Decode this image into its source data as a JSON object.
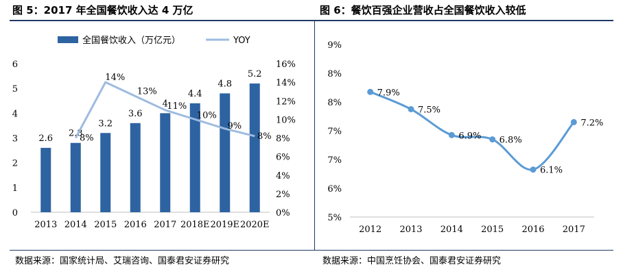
{
  "left": {
    "title": "图 5：2017 年全国餐饮收入达 4 万亿",
    "source": "数据来源：国家统计局、艾瑞咨询、国泰君安证券研究"
  },
  "right": {
    "title": "图 6：餐饮百强企业营收占全国餐饮收入较低",
    "source": "数据来源：中国烹饪协会、国泰君安证券研究"
  },
  "colors": {
    "bar": "#2e63a2",
    "yoy": "#9dbbe0",
    "line": "#5b9bd5",
    "rule": "#1f3864"
  },
  "chart_data": [
    {
      "type": "bar",
      "title": "",
      "categories": [
        "2013",
        "2014",
        "2015",
        "2016",
        "2017",
        "2018E",
        "2019E",
        "2020E"
      ],
      "series": [
        {
          "name": "全国餐饮收入（万亿元）",
          "type": "bar",
          "axis": "left",
          "values": [
            2.6,
            2.8,
            3.2,
            3.6,
            4,
            4.4,
            4.8,
            5.2
          ],
          "labels": [
            "2.6",
            "2.8",
            "3.2",
            "3.6",
            "4",
            "4.4",
            "4.8",
            "5.2"
          ]
        },
        {
          "name": "YOY",
          "type": "line",
          "axis": "right",
          "values": [
            null,
            8,
            14,
            12.5,
            11,
            10,
            9,
            8.2
          ],
          "labels": [
            "",
            "8%",
            "14%",
            "13%",
            "11%",
            "10%",
            "9%",
            "8%"
          ]
        }
      ],
      "ylim": [
        0,
        6
      ],
      "yticks": [
        "0",
        "1",
        "2",
        "3",
        "4",
        "5",
        "6"
      ],
      "y2lim": [
        0,
        16
      ],
      "y2ticks": [
        "0%",
        "2%",
        "4%",
        "6%",
        "8%",
        "10%",
        "12%",
        "14%",
        "16%"
      ],
      "legend": "top",
      "grid": false
    },
    {
      "type": "line",
      "title": "",
      "x": [
        "2012",
        "2013",
        "2014",
        "2015",
        "2016",
        "2017"
      ],
      "series": [
        {
          "values": [
            7.9,
            7.5,
            6.9,
            6.8,
            6.1,
            7.2
          ],
          "labels": [
            "7.9%",
            "7.5%",
            "6.9%",
            "6.8%",
            "6.1%",
            "7.2%"
          ]
        }
      ],
      "ylim": [
        5,
        9
      ],
      "yticks": [
        "5%",
        "6%",
        "7%",
        "7%",
        "8%",
        "8%",
        "9%"
      ],
      "grid": false,
      "legend": "none"
    }
  ]
}
